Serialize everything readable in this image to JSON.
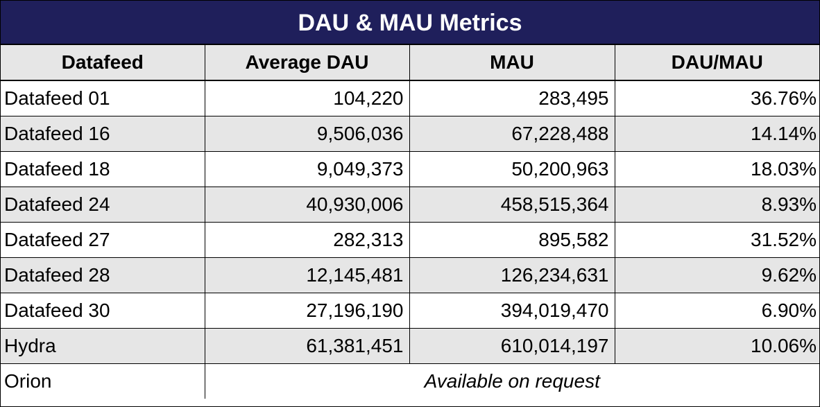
{
  "title": "DAU & MAU Metrics",
  "colors": {
    "title_background": "#1f1f5b",
    "title_text": "#ffffff",
    "shaded_row": "#e6e6e6"
  },
  "headers": [
    "Datafeed",
    "Average DAU",
    "MAU",
    "DAU/MAU"
  ],
  "rows": [
    {
      "name": "Datafeed 01",
      "avg_dau": "104,220",
      "mau": "283,495",
      "ratio": "36.76%"
    },
    {
      "name": "Datafeed 16",
      "avg_dau": "9,506,036",
      "mau": "67,228,488",
      "ratio": "14.14%"
    },
    {
      "name": "Datafeed 18",
      "avg_dau": "9,049,373",
      "mau": "50,200,963",
      "ratio": "18.03%"
    },
    {
      "name": "Datafeed 24",
      "avg_dau": "40,930,006",
      "mau": "458,515,364",
      "ratio": "8.93%"
    },
    {
      "name": "Datafeed 27",
      "avg_dau": "282,313",
      "mau": "895,582",
      "ratio": "31.52%"
    },
    {
      "name": "Datafeed 28",
      "avg_dau": "12,145,481",
      "mau": "126,234,631",
      "ratio": "9.62%"
    },
    {
      "name": "Datafeed 30",
      "avg_dau": "27,196,190",
      "mau": "394,019,470",
      "ratio": "6.90%"
    },
    {
      "name": "Hydra",
      "avg_dau": "61,381,451",
      "mau": "610,014,197",
      "ratio": "10.06%"
    }
  ],
  "footer_row": {
    "name": "Orion",
    "note": "Available on request"
  }
}
